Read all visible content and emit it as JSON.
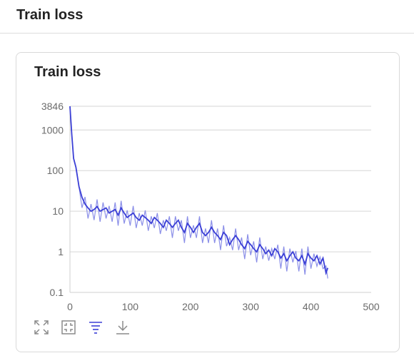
{
  "page": {
    "title": "Train loss"
  },
  "card": {
    "title": "Train loss"
  },
  "colors": {
    "series": "#3b3fd6",
    "series_light": "#8b8fe8",
    "grid": "#d6d6d6",
    "axis_text": "#6b6b6b",
    "icon": "#8a8a8a",
    "icon_active": "#3b3fd6"
  },
  "toolbar": {
    "icons": [
      "fullscreen-icon",
      "fit-icon",
      "filter-icon",
      "download-icon"
    ]
  },
  "chart_data": {
    "type": "line",
    "title": "Train loss",
    "xlabel": "",
    "ylabel": "",
    "y_scale": "log",
    "xlim": [
      0,
      500
    ],
    "ylim": [
      0.1,
      3846
    ],
    "x_ticks": [
      "0",
      "100",
      "200",
      "300",
      "400",
      "500"
    ],
    "y_ticks": [
      "0.1",
      "1",
      "10",
      "100",
      "1000",
      "3846"
    ],
    "grid": true,
    "series": [
      {
        "x": [
          0,
          3,
          6,
          10,
          15,
          20,
          25,
          30,
          35,
          40,
          45,
          50,
          55,
          60,
          65,
          70,
          75,
          80,
          85,
          90,
          95,
          100,
          105,
          110,
          115,
          120,
          125,
          130,
          135,
          140,
          145,
          150,
          155,
          160,
          165,
          170,
          175,
          180,
          185,
          190,
          195,
          200,
          205,
          210,
          215,
          220,
          225,
          230,
          235,
          240,
          245,
          250,
          255,
          260,
          265,
          270,
          275,
          280,
          285,
          290,
          295,
          300,
          305,
          310,
          315,
          320,
          325,
          330,
          335,
          340,
          345,
          350,
          355,
          360,
          365,
          370,
          375,
          380,
          385,
          390,
          395,
          400,
          405,
          410,
          415,
          420,
          425,
          428
        ],
        "y": [
          3846,
          800,
          200,
          120,
          40,
          22,
          15,
          12,
          10,
          11,
          13,
          10,
          11,
          12,
          9,
          10,
          11,
          8,
          12,
          9,
          7,
          8,
          9,
          7,
          6,
          8,
          7,
          6,
          5,
          7,
          6,
          5,
          4,
          6,
          5,
          4,
          5,
          6,
          4,
          3,
          5,
          4,
          3,
          4,
          5,
          3,
          2.5,
          3,
          4,
          3,
          2.5,
          2,
          3,
          2.5,
          1.5,
          2,
          2.5,
          2,
          1.5,
          1.2,
          1.8,
          1.5,
          1.2,
          1,
          1.5,
          1.2,
          0.9,
          1.1,
          0.8,
          1.2,
          1,
          0.7,
          0.9,
          0.6,
          0.8,
          1,
          0.7,
          0.6,
          0.8,
          0.5,
          0.9,
          0.7,
          0.6,
          0.8,
          0.5,
          0.7,
          0.3,
          0.4
        ]
      }
    ]
  }
}
